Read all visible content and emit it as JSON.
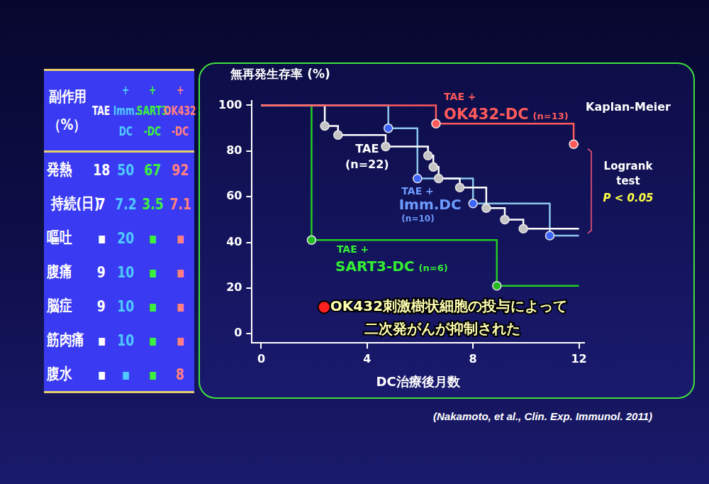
{
  "table": {
    "header": [
      [
        "副作用",
        "（%）"
      ],
      [
        "TAE"
      ],
      [
        "+",
        "Imm.",
        "DC"
      ],
      [
        "+",
        "SART3",
        "-DC"
      ],
      [
        "+",
        "OK432",
        "-DC"
      ]
    ],
    "column_colors": [
      "#ffffff",
      "#ffffff",
      "#4fc8ff",
      "#3cf03c",
      "#ff8080"
    ],
    "rows": [
      [
        "発熱",
        "18",
        "50",
        "67",
        "92"
      ],
      [
        "持続(日)",
        "7",
        "7.2",
        "3.5",
        "7.1"
      ],
      [
        "嘔吐",
        "▪",
        "20",
        "▪",
        "▪"
      ],
      [
        "腹痛",
        "9",
        "10",
        "▪",
        "▪"
      ],
      [
        "脳症",
        "9",
        "10",
        "▪",
        "▪"
      ],
      [
        "筋肉痛",
        "▪",
        "10",
        "▪",
        "▪"
      ],
      [
        "腹水",
        "▪",
        "▪",
        "▪",
        "8"
      ]
    ]
  },
  "chart_data": {
    "type": "line",
    "y_label": "無再発生存率 (%)",
    "x_label": "DC治療後月数",
    "xlim": [
      -0.35,
      12.2
    ],
    "xticks": [
      0,
      4,
      8,
      12
    ],
    "ylim": [
      -4,
      102
    ],
    "yticks": [
      0,
      20,
      40,
      60,
      80,
      100
    ],
    "grid": false,
    "series": [
      {
        "prefix": "TAE +",
        "name": "OK432-DC",
        "n_label": "(n=13)",
        "color": "#ff5a5a",
        "line_style": "steps",
        "marker": "circle",
        "x": [
          0,
          6.6,
          11.8,
          12
        ],
        "values": [
          100,
          92,
          83,
          83
        ],
        "marks": {
          "x": [
            6.6,
            11.8
          ],
          "values": [
            92,
            83
          ]
        }
      },
      {
        "name": "TAE",
        "n_label": "(n=22)",
        "color": "#ffffff",
        "line_style": "steps",
        "marker": "circle",
        "x": [
          0,
          2.4,
          2.9,
          4.7,
          6.3,
          6.5,
          6.7,
          7.5,
          8.5,
          9.2,
          9.9,
          12
        ],
        "values": [
          100,
          91,
          87,
          82,
          78,
          73,
          68,
          64,
          55,
          50,
          46,
          46
        ],
        "marks": {
          "x": [
            2.4,
            2.9,
            4.7,
            6.3,
            6.5,
            6.7,
            7.5,
            8.5,
            9.2,
            9.9
          ],
          "values": [
            91,
            87,
            82,
            78,
            73,
            68,
            64,
            55,
            50,
            46
          ]
        }
      },
      {
        "prefix": "TAE +",
        "name": "Imm.DC",
        "n_label": "(n=10)",
        "color": "#8cc8ee",
        "line_style": "steps",
        "marker": "circle",
        "x": [
          0,
          4.8,
          5.9,
          8.0,
          10.9,
          12
        ],
        "values": [
          100,
          90,
          68,
          57,
          43,
          43
        ],
        "marks": {
          "x": [
            4.8,
            5.9,
            8.0,
            10.9
          ],
          "values": [
            90,
            68,
            57,
            43
          ]
        }
      },
      {
        "prefix": "TAE +",
        "name": "SART3-DC",
        "n_label": "(n=6)",
        "color": "#22cc22",
        "line_style": "steps",
        "marker": "circle",
        "x": [
          0,
          1.9,
          8.9,
          12
        ],
        "values": [
          100,
          41,
          21,
          21
        ],
        "marks": {
          "x": [
            1.9,
            8.9
          ],
          "values": [
            41,
            21
          ]
        }
      }
    ],
    "annotations": {
      "method": "Kaplan-Meier",
      "test": [
        "Logrank",
        "test"
      ],
      "p_value": "P < 0.05",
      "note_bullet": "●",
      "note": [
        "OK432刺激樹状細胞の投与によって",
        "二次発がんが抑制された"
      ]
    }
  },
  "citation": "(Nakamoto, et al., Clin. Exp. Immunol. 2011)"
}
